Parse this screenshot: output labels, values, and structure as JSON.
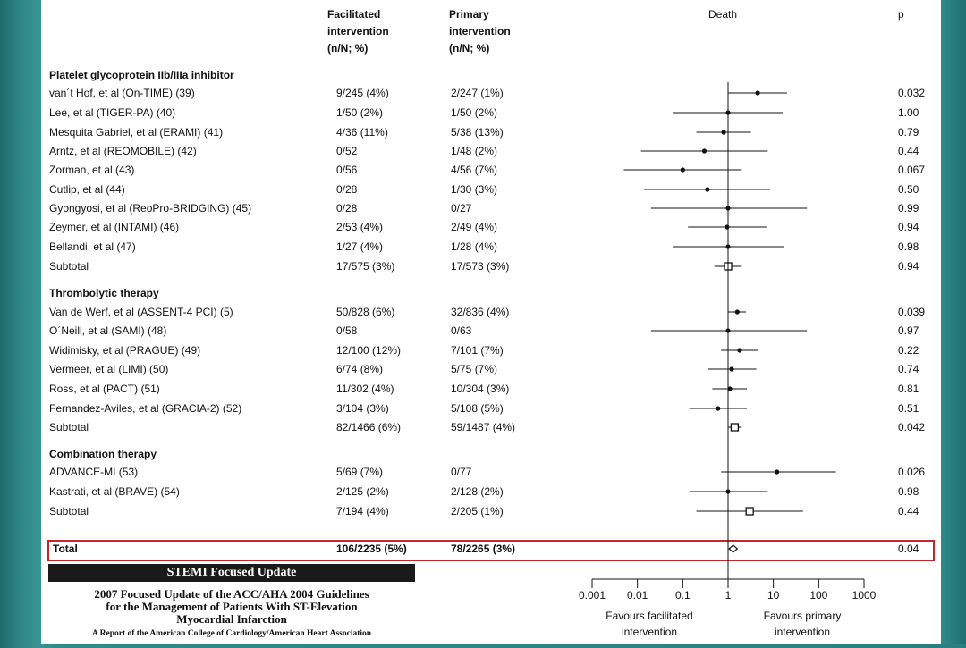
{
  "chart_data": {
    "type": "forest",
    "headers": {
      "facilitated": [
        "Facilitated",
        "intervention",
        "(n/N; %)"
      ],
      "primary": [
        "Primary",
        "intervention",
        "(n/N; %)"
      ],
      "effect": "Death",
      "p": "p"
    },
    "groups": [
      {
        "title": "Platelet glycoprotein IIb/IIIa inhibitor",
        "rows": [
          {
            "study": "van´t Hof, et al (On-TIME) (39)",
            "fac": "9/245 (4%)",
            "prim": "2/247 (1%)",
            "p": "0.032",
            "or": 4.5,
            "lo": 1.0,
            "hi": 20,
            "marker": "point"
          },
          {
            "study": "Lee, et al (TIGER-PA) (40)",
            "fac": "1/50 (2%)",
            "prim": "1/50 (2%)",
            "p": "1.00",
            "or": 1.0,
            "lo": 0.06,
            "hi": 16,
            "marker": "point"
          },
          {
            "study": "Mesquita Gabriel, et al (ERAMI) (41)",
            "fac": "4/36 (11%)",
            "prim": "5/38 (13%)",
            "p": "0.79",
            "or": 0.8,
            "lo": 0.2,
            "hi": 3.2,
            "marker": "point"
          },
          {
            "study": "Arntz, et al (REOMOBILE) (42)",
            "fac": "0/52",
            "prim": "1/48 (2%)",
            "p": "0.44",
            "or": 0.3,
            "lo": 0.012,
            "hi": 7.5,
            "marker": "point"
          },
          {
            "study": "Zorman, et al (43)",
            "fac": "0/56",
            "prim": "4/56 (7%)",
            "p": "0.067",
            "or": 0.1,
            "lo": 0.005,
            "hi": 2.0,
            "marker": "point"
          },
          {
            "study": "Cutlip, et al (44)",
            "fac": "0/28",
            "prim": "1/30 (3%)",
            "p": "0.50",
            "or": 0.35,
            "lo": 0.014,
            "hi": 8.5,
            "marker": "point"
          },
          {
            "study": "Gyongyosi, et al (ReoPro-BRIDGING) (45)",
            "fac": "0/28",
            "prim": "0/27",
            "p": "0.99",
            "or": 1.0,
            "lo": 0.02,
            "hi": 55,
            "marker": "point"
          },
          {
            "study": "Zeymer, et al (INTAMI) (46)",
            "fac": "2/53 (4%)",
            "prim": "2/49 (4%)",
            "p": "0.94",
            "or": 0.95,
            "lo": 0.13,
            "hi": 7.0,
            "marker": "point"
          },
          {
            "study": "Bellandi, et al (47)",
            "fac": "1/27 (4%)",
            "prim": "1/28 (4%)",
            "p": "0.98",
            "or": 1.0,
            "lo": 0.06,
            "hi": 17,
            "marker": "point"
          },
          {
            "study": "Subtotal",
            "fac": "17/575 (3%)",
            "prim": "17/573 (3%)",
            "p": "0.94",
            "or": 1.0,
            "lo": 0.5,
            "hi": 2.0,
            "marker": "square"
          }
        ]
      },
      {
        "title": "Thrombolytic therapy",
        "rows": [
          {
            "study": "Van de Werf, et al (ASSENT-4 PCI) (5)",
            "fac": "50/828 (6%)",
            "prim": "32/836 (4%)",
            "p": "0.039",
            "or": 1.6,
            "lo": 1.0,
            "hi": 2.5,
            "marker": "point"
          },
          {
            "study": "O´Neill, et al (SAMI) (48)",
            "fac": "0/58",
            "prim": "0/63",
            "p": "0.97",
            "or": 1.0,
            "lo": 0.02,
            "hi": 55,
            "marker": "point"
          },
          {
            "study": "Widimisky, et al (PRAGUE) (49)",
            "fac": "12/100 (12%)",
            "prim": "7/101 (7%)",
            "p": "0.22",
            "or": 1.8,
            "lo": 0.7,
            "hi": 4.7,
            "marker": "point"
          },
          {
            "study": "Vermeer, et al (LIMI) (50)",
            "fac": "6/74 (8%)",
            "prim": "5/75 (7%)",
            "p": "0.74",
            "or": 1.2,
            "lo": 0.35,
            "hi": 4.2,
            "marker": "point"
          },
          {
            "study": "Ross, et al (PACT) (51)",
            "fac": "11/302 (4%)",
            "prim": "10/304 (3%)",
            "p": "0.81",
            "or": 1.1,
            "lo": 0.45,
            "hi": 2.6,
            "marker": "point"
          },
          {
            "study": "Fernandez-Aviles, et al (GRACIA-2) (52)",
            "fac": "3/104 (3%)",
            "prim": "5/108 (5%)",
            "p": "0.51",
            "or": 0.6,
            "lo": 0.14,
            "hi": 2.6,
            "marker": "point"
          },
          {
            "study": "Subtotal",
            "fac": "82/1466 (6%)",
            "prim": "59/1487 (4%)",
            "p": "0.042",
            "or": 1.4,
            "lo": 1.0,
            "hi": 2.0,
            "marker": "square"
          }
        ]
      },
      {
        "title": "Combination therapy",
        "rows": [
          {
            "study": "ADVANCE-MI (53)",
            "fac": "5/69 (7%)",
            "prim": "0/77",
            "p": "0.026",
            "or": 12,
            "lo": 0.7,
            "hi": 240,
            "marker": "point"
          },
          {
            "study": "Kastrati, et al (BRAVE) (54)",
            "fac": "2/125 (2%)",
            "prim": "2/128 (2%)",
            "p": "0.98",
            "or": 1.0,
            "lo": 0.14,
            "hi": 7.5,
            "marker": "point"
          },
          {
            "study": "Subtotal",
            "fac": "7/194 (4%)",
            "prim": "2/205 (1%)",
            "p": "0.44",
            "or": 3.0,
            "lo": 0.2,
            "hi": 45,
            "marker": "square"
          }
        ]
      }
    ],
    "total": {
      "study": "Total",
      "fac": "106/2235 (5%)",
      "prim": "78/2265 (3%)",
      "p": "0.04",
      "or": 1.3,
      "lo": 1.05,
      "hi": 1.6,
      "marker": "diamond"
    },
    "x_axis": {
      "scale": "log",
      "ticks": [
        0.001,
        0.01,
        0.1,
        1,
        10,
        100,
        1000
      ],
      "tick_labels": [
        "0.001",
        "0.01",
        "0.1",
        "1",
        "10",
        "100",
        "1000"
      ],
      "reference_line": 1,
      "left_label": [
        "Favours facilitated",
        "intervention"
      ],
      "right_label": [
        "Favours primary",
        "intervention"
      ]
    },
    "highlight": "Total",
    "highlight_color": "#c0282d"
  },
  "citation": {
    "banner": "STEMI Focused Update",
    "title_lines": [
      "2007 Focused Update of the ACC/AHA 2004 Guidelines",
      "for the Management of Patients With ST-Elevation",
      "Myocardial Infarction"
    ],
    "subtitle": "A Report of the American College of Cardiology/American Heart Association"
  }
}
